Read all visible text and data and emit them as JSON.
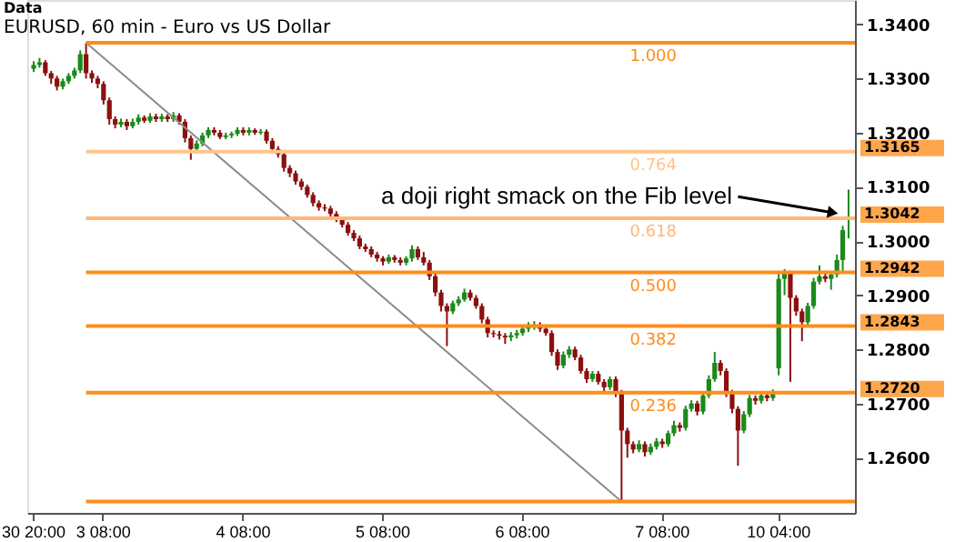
{
  "chart_data": {
    "type": "candlestick",
    "title": "EURUSD, 60 min - Euro vs US Dollar",
    "categories": [
      "30 20:00",
      null,
      null,
      null,
      null,
      null,
      null,
      null,
      null,
      null,
      null,
      null,
      "3 08:00",
      null,
      null,
      null,
      null,
      null,
      null,
      null,
      null,
      null,
      null,
      null,
      null,
      null,
      null,
      null,
      null,
      null,
      null,
      null,
      null,
      null,
      null,
      null,
      "4 08:00",
      null,
      null,
      null,
      null,
      null,
      null,
      null,
      null,
      null,
      null,
      null,
      null,
      null,
      null,
      null,
      null,
      null,
      null,
      null,
      null,
      null,
      null,
      null,
      "5 08:00",
      null,
      null,
      null,
      null,
      null,
      null,
      null,
      null,
      null,
      null,
      null,
      null,
      null,
      null,
      null,
      null,
      null,
      null,
      null,
      null,
      null,
      null,
      null,
      "6 08:00",
      null,
      null,
      null,
      null,
      null,
      null,
      null,
      null,
      null,
      null,
      null,
      null,
      null,
      null,
      null,
      null,
      null,
      null,
      null,
      null,
      null,
      null,
      null,
      "7 08:00",
      null,
      null,
      null,
      null,
      null,
      null,
      null,
      null,
      null,
      null,
      null,
      null,
      null,
      null,
      null,
      null,
      null,
      null,
      null,
      "10 04:00",
      null,
      null,
      null,
      null,
      null,
      null,
      null,
      null,
      null,
      null,
      null,
      null
    ],
    "ylim": [
      1.2498,
      1.3445
    ],
    "yticks": [
      {
        "value": 1.26,
        "label": "1.2600"
      },
      {
        "value": 1.27,
        "label": "1.2700"
      },
      {
        "value": 1.28,
        "label": "1.2800"
      },
      {
        "value": 1.29,
        "label": "1.2900"
      },
      {
        "value": 1.3,
        "label": "1.3000"
      },
      {
        "value": 1.31,
        "label": "1.3100"
      },
      {
        "value": 1.32,
        "label": "1.3200"
      },
      {
        "value": 1.33,
        "label": "1.3300"
      },
      {
        "value": 1.34,
        "label": "1.3400"
      }
    ],
    "ohlc": [
      [
        1.3318,
        1.3332,
        1.3312,
        1.3325
      ],
      [
        1.3325,
        1.3338,
        1.332,
        1.333
      ],
      [
        1.333,
        1.3334,
        1.3305,
        1.331
      ],
      [
        1.331,
        1.3314,
        1.329,
        1.33
      ],
      [
        1.33,
        1.3305,
        1.3278,
        1.3285
      ],
      [
        1.3285,
        1.33,
        1.328,
        1.3295
      ],
      [
        1.3295,
        1.331,
        1.329,
        1.3305
      ],
      [
        1.3305,
        1.332,
        1.33,
        1.3315
      ],
      [
        1.3315,
        1.3352,
        1.331,
        1.3345
      ],
      [
        1.3345,
        1.3366,
        1.33,
        1.331
      ],
      [
        1.331,
        1.3315,
        1.3292,
        1.33
      ],
      [
        1.33,
        1.3305,
        1.3282,
        1.329
      ],
      [
        1.329,
        1.3295,
        1.3252,
        1.326
      ],
      [
        1.326,
        1.3265,
        1.3215,
        1.3225
      ],
      [
        1.3225,
        1.323,
        1.3208,
        1.3215
      ],
      [
        1.3215,
        1.3226,
        1.321,
        1.322
      ],
      [
        1.322,
        1.3225,
        1.3205,
        1.3212
      ],
      [
        1.3212,
        1.3226,
        1.3208,
        1.322
      ],
      [
        1.322,
        1.3234,
        1.3215,
        1.3228
      ],
      [
        1.3228,
        1.3232,
        1.3218,
        1.3222
      ],
      [
        1.3222,
        1.3236,
        1.3218,
        1.323
      ],
      [
        1.323,
        1.3235,
        1.322,
        1.3225
      ],
      [
        1.3225,
        1.3235,
        1.322,
        1.323
      ],
      [
        1.323,
        1.3234,
        1.322,
        1.3225
      ],
      [
        1.3225,
        1.3238,
        1.322,
        1.3232
      ],
      [
        1.3232,
        1.3236,
        1.3215,
        1.322
      ],
      [
        1.322,
        1.3225,
        1.3182,
        1.319
      ],
      [
        1.319,
        1.3195,
        1.315,
        1.317
      ],
      [
        1.317,
        1.3186,
        1.3162,
        1.318
      ],
      [
        1.318,
        1.32,
        1.3175,
        1.3195
      ],
      [
        1.3195,
        1.321,
        1.319,
        1.3205
      ],
      [
        1.3205,
        1.321,
        1.3195,
        1.32
      ],
      [
        1.32,
        1.3205,
        1.3188,
        1.3192
      ],
      [
        1.3192,
        1.32,
        1.3188,
        1.3195
      ],
      [
        1.3195,
        1.3202,
        1.319,
        1.3198
      ],
      [
        1.3198,
        1.321,
        1.3194,
        1.3205
      ],
      [
        1.3205,
        1.321,
        1.3195,
        1.32
      ],
      [
        1.32,
        1.321,
        1.3195,
        1.3205
      ],
      [
        1.3205,
        1.3208,
        1.3196,
        1.32
      ],
      [
        1.32,
        1.3207,
        1.3196,
        1.3202
      ],
      [
        1.3202,
        1.3206,
        1.318,
        1.3185
      ],
      [
        1.3185,
        1.319,
        1.3165,
        1.317
      ],
      [
        1.317,
        1.3175,
        1.3154,
        1.316
      ],
      [
        1.316,
        1.3164,
        1.3128,
        1.3135
      ],
      [
        1.3135,
        1.314,
        1.3118,
        1.3125
      ],
      [
        1.3125,
        1.313,
        1.3104,
        1.311
      ],
      [
        1.311,
        1.3115,
        1.3094,
        1.31
      ],
      [
        1.31,
        1.3104,
        1.308,
        1.3085
      ],
      [
        1.3085,
        1.309,
        1.3064,
        1.307
      ],
      [
        1.307,
        1.3075,
        1.3056,
        1.3062
      ],
      [
        1.3062,
        1.3068,
        1.3055,
        1.306
      ],
      [
        1.306,
        1.3065,
        1.3045,
        1.305
      ],
      [
        1.305,
        1.3055,
        1.3035,
        1.304
      ],
      [
        1.304,
        1.3045,
        1.3025,
        1.303
      ],
      [
        1.303,
        1.3035,
        1.301,
        1.3015
      ],
      [
        1.3015,
        1.302,
        1.3,
        1.3005
      ],
      [
        1.3005,
        1.301,
        1.2985,
        1.299
      ],
      [
        1.299,
        1.2995,
        1.298,
        1.2985
      ],
      [
        1.2985,
        1.299,
        1.297,
        1.2975
      ],
      [
        1.2975,
        1.298,
        1.2962,
        1.2968
      ],
      [
        1.2968,
        1.2972,
        1.2955,
        1.2962
      ],
      [
        1.2962,
        1.2975,
        1.2958,
        1.297
      ],
      [
        1.297,
        1.2974,
        1.296,
        1.2965
      ],
      [
        1.2965,
        1.297,
        1.2955,
        1.296
      ],
      [
        1.296,
        1.2972,
        1.2955,
        1.2968
      ],
      [
        1.2968,
        1.2992,
        1.2962,
        1.2985
      ],
      [
        1.2985,
        1.299,
        1.2965,
        1.297
      ],
      [
        1.297,
        1.298,
        1.2955,
        1.296
      ],
      [
        1.296,
        1.2965,
        1.2928,
        1.2935
      ],
      [
        1.2935,
        1.294,
        1.2898,
        1.2905
      ],
      [
        1.2905,
        1.291,
        1.287,
        1.288
      ],
      [
        1.288,
        1.2885,
        1.2806,
        1.287
      ],
      [
        1.287,
        1.289,
        1.2865,
        1.2885
      ],
      [
        1.2885,
        1.2898,
        1.288,
        1.2892
      ],
      [
        1.2892,
        1.2912,
        1.2888,
        1.2905
      ],
      [
        1.2905,
        1.291,
        1.289,
        1.2895
      ],
      [
        1.2895,
        1.29,
        1.2875,
        1.288
      ],
      [
        1.288,
        1.2885,
        1.2848,
        1.2855
      ],
      [
        1.2855,
        1.286,
        1.2822,
        1.283
      ],
      [
        1.283,
        1.2835,
        1.2822,
        1.2828
      ],
      [
        1.2828,
        1.2834,
        1.2818,
        1.2825
      ],
      [
        1.2825,
        1.283,
        1.281,
        1.2822
      ],
      [
        1.2822,
        1.2832,
        1.2815,
        1.2826
      ],
      [
        1.2826,
        1.2836,
        1.282,
        1.283
      ],
      [
        1.283,
        1.2845,
        1.2825,
        1.2838
      ],
      [
        1.2838,
        1.285,
        1.2832,
        1.2842
      ],
      [
        1.2842,
        1.2852,
        1.2836,
        1.2845
      ],
      [
        1.2845,
        1.285,
        1.2832,
        1.2838
      ],
      [
        1.2838,
        1.2842,
        1.2825,
        1.283
      ],
      [
        1.283,
        1.2835,
        1.2788,
        1.2795
      ],
      [
        1.2795,
        1.28,
        1.2762,
        1.277
      ],
      [
        1.277,
        1.2796,
        1.2765,
        1.279
      ],
      [
        1.279,
        1.2806,
        1.2784,
        1.28
      ],
      [
        1.28,
        1.2805,
        1.278,
        1.2785
      ],
      [
        1.2785,
        1.279,
        1.2755,
        1.276
      ],
      [
        1.276,
        1.2765,
        1.2738,
        1.2745
      ],
      [
        1.2745,
        1.276,
        1.274,
        1.2755
      ],
      [
        1.2755,
        1.276,
        1.2735,
        1.274
      ],
      [
        1.274,
        1.2745,
        1.2722,
        1.273
      ],
      [
        1.273,
        1.275,
        1.2725,
        1.2745
      ],
      [
        1.2745,
        1.275,
        1.2712,
        1.272
      ],
      [
        1.272,
        1.2725,
        1.2519,
        1.265
      ],
      [
        1.265,
        1.2655,
        1.26,
        1.2625
      ],
      [
        1.2625,
        1.263,
        1.2608,
        1.2615
      ],
      [
        1.2615,
        1.2632,
        1.261,
        1.2625
      ],
      [
        1.2625,
        1.263,
        1.2602,
        1.261
      ],
      [
        1.261,
        1.2626,
        1.2605,
        1.262
      ],
      [
        1.262,
        1.2636,
        1.2615,
        1.263
      ],
      [
        1.263,
        1.2635,
        1.2618,
        1.2625
      ],
      [
        1.2625,
        1.265,
        1.262,
        1.2645
      ],
      [
        1.2645,
        1.2668,
        1.264,
        1.266
      ],
      [
        1.266,
        1.2665,
        1.2648,
        1.2655
      ],
      [
        1.2655,
        1.2696,
        1.265,
        1.269
      ],
      [
        1.269,
        1.2706,
        1.2685,
        1.27
      ],
      [
        1.27,
        1.2705,
        1.2678,
        1.2685
      ],
      [
        1.2685,
        1.2722,
        1.268,
        1.2715
      ],
      [
        1.2715,
        1.2752,
        1.271,
        1.2745
      ],
      [
        1.2745,
        1.2795,
        1.274,
        1.2775
      ],
      [
        1.2775,
        1.278,
        1.2752,
        1.276
      ],
      [
        1.276,
        1.2765,
        1.2712,
        1.272
      ],
      [
        1.272,
        1.2725,
        1.2682,
        1.269
      ],
      [
        1.269,
        1.2695,
        1.2585,
        1.265
      ],
      [
        1.265,
        1.2686,
        1.2645,
        1.268
      ],
      [
        1.268,
        1.2716,
        1.2675,
        1.271
      ],
      [
        1.271,
        1.2715,
        1.2698,
        1.2705
      ],
      [
        1.2705,
        1.2722,
        1.27,
        1.2715
      ],
      [
        1.2715,
        1.272,
        1.2704,
        1.271
      ],
      [
        1.271,
        1.2726,
        1.2705,
        1.272
      ],
      [
        1.2765,
        1.2945,
        1.2752,
        1.293
      ],
      [
        1.293,
        1.2948,
        1.29,
        1.294
      ],
      [
        1.294,
        1.2945,
        1.274,
        1.2895
      ],
      [
        1.2895,
        1.29,
        1.2862,
        1.287
      ],
      [
        1.287,
        1.2875,
        1.2815,
        1.285
      ],
      [
        1.285,
        1.2886,
        1.2845,
        1.288
      ],
      [
        1.288,
        1.2932,
        1.2875,
        1.2925
      ],
      [
        1.2925,
        1.2955,
        1.292,
        1.2935
      ],
      [
        1.2935,
        1.2945,
        1.2924,
        1.293
      ],
      [
        1.293,
        1.2944,
        1.291,
        1.2938
      ],
      [
        1.2938,
        1.2975,
        1.2933,
        1.2965
      ],
      [
        1.2965,
        1.3028,
        1.294,
        1.302
      ],
      [
        1.304,
        1.3095,
        1.3005,
        1.3042
      ]
    ],
    "colors": [
      "#1a8a1a",
      "#1a8a1a",
      "#8b1010",
      "#8b1010",
      "#8b1010",
      "#1a8a1a",
      "#1a8a1a",
      "#1a8a1a",
      "#1a8a1a",
      "#8b1010",
      "#8b1010",
      "#8b1010",
      "#8b1010",
      "#8b1010",
      "#8b1010",
      "#1a8a1a",
      "#8b1010",
      "#1a8a1a",
      "#1a8a1a",
      "#8b1010",
      "#1a8a1a",
      "#8b1010",
      "#1a8a1a",
      "#8b1010",
      "#1a8a1a",
      "#8b1010",
      "#8b1010",
      "#8b1010",
      "#1a8a1a",
      "#1a8a1a",
      "#1a8a1a",
      "#8b1010",
      "#8b1010",
      "#1a8a1a",
      "#1a8a1a",
      "#1a8a1a",
      "#8b1010",
      "#1a8a1a",
      "#8b1010",
      "#1a8a1a",
      "#8b1010",
      "#8b1010",
      "#8b1010",
      "#8b1010",
      "#8b1010",
      "#8b1010",
      "#8b1010",
      "#8b1010",
      "#8b1010",
      "#8b1010",
      "#8b1010",
      "#8b1010",
      "#8b1010",
      "#8b1010",
      "#8b1010",
      "#8b1010",
      "#8b1010",
      "#8b1010",
      "#8b1010",
      "#8b1010",
      "#8b1010",
      "#1a8a1a",
      "#8b1010",
      "#8b1010",
      "#1a8a1a",
      "#1a8a1a",
      "#8b1010",
      "#8b1010",
      "#8b1010",
      "#8b1010",
      "#8b1010",
      "#8b1010",
      "#1a8a1a",
      "#1a8a1a",
      "#1a8a1a",
      "#8b1010",
      "#8b1010",
      "#8b1010",
      "#8b1010",
      "#8b1010",
      "#8b1010",
      "#8b1010",
      "#1a8a1a",
      "#1a8a1a",
      "#1a8a1a",
      "#1a8a1a",
      "#1a8a1a",
      "#8b1010",
      "#8b1010",
      "#8b1010",
      "#8b1010",
      "#1a8a1a",
      "#1a8a1a",
      "#8b1010",
      "#8b1010",
      "#8b1010",
      "#1a8a1a",
      "#8b1010",
      "#8b1010",
      "#1a8a1a",
      "#8b1010",
      "#8b1010",
      "#8b1010",
      "#8b1010",
      "#1a8a1a",
      "#8b1010",
      "#1a8a1a",
      "#1a8a1a",
      "#8b1010",
      "#1a8a1a",
      "#1a8a1a",
      "#8b1010",
      "#1a8a1a",
      "#1a8a1a",
      "#8b1010",
      "#1a8a1a",
      "#1a8a1a",
      "#1a8a1a",
      "#8b1010",
      "#8b1010",
      "#8b1010",
      "#8b1010",
      "#1a8a1a",
      "#1a8a1a",
      "#8b1010",
      "#1a8a1a",
      "#8b1010",
      "#1a8a1a",
      "#1a8a1a",
      "#1a8a1a",
      "#8b1010",
      "#8b1010",
      "#8b1010",
      "#1a8a1a",
      "#1a8a1a",
      "#1a8a1a",
      "#8b1010",
      "#1a8a1a",
      "#1a8a1a",
      "#1a8a1a",
      "#1a8a1a"
    ],
    "series": [
      {
        "type": "line",
        "color": "#8c8c8c",
        "values": [
          null,
          null,
          null,
          null,
          null,
          null,
          null,
          null,
          null,
          1.3366,
          null,
          null,
          null,
          null,
          null,
          null,
          null,
          null,
          null,
          null,
          null,
          null,
          null,
          null,
          null,
          null,
          null,
          null,
          null,
          null,
          null,
          null,
          null,
          null,
          null,
          null,
          null,
          null,
          null,
          null,
          null,
          null,
          null,
          null,
          null,
          null,
          null,
          null,
          null,
          null,
          null,
          null,
          null,
          null,
          null,
          null,
          null,
          null,
          null,
          null,
          null,
          null,
          null,
          null,
          null,
          null,
          null,
          null,
          null,
          null,
          null,
          null,
          null,
          null,
          null,
          null,
          null,
          null,
          null,
          null,
          null,
          null,
          null,
          null,
          null,
          null,
          null,
          null,
          null,
          null,
          null,
          null,
          null,
          null,
          null,
          null,
          null,
          null,
          null,
          null,
          null,
          1.2519,
          null,
          null,
          null,
          null,
          null,
          null,
          null,
          null,
          null,
          null,
          null,
          null,
          null,
          null,
          null,
          null,
          null,
          null,
          null,
          null,
          null,
          null,
          null,
          null,
          null,
          null,
          null,
          null,
          null,
          null,
          null,
          null,
          null,
          null,
          null,
          null,
          null,
          null,
          null
        ]
      }
    ],
    "ref_lines": [
      {
        "axis": "y",
        "value": 1.3366,
        "label": null,
        "color": "#ff8c1a"
      },
      {
        "axis": "y",
        "value": 1.3165,
        "label": "1.3165",
        "color": "#ffc48a"
      },
      {
        "axis": "y",
        "value": 1.3042,
        "label": "1.3042",
        "color": "#ffb877"
      },
      {
        "axis": "y",
        "value": 1.2942,
        "label": "1.2942",
        "color": "#ff8c1a"
      },
      {
        "axis": "y",
        "value": 1.2843,
        "label": "1.2843",
        "color": "#ff8c1a"
      },
      {
        "axis": "y",
        "value": 1.272,
        "label": "1.2720",
        "color": "#ff8c1a"
      },
      {
        "axis": "y",
        "value": 1.2519,
        "label": null,
        "color": "#ff8c1a"
      }
    ],
    "annotations": [
      "Data",
      {
        "text": "a doji right smack on the Fib level",
        "y": 1.3042
      },
      {
        "text": "1.000",
        "y": 1.3366
      },
      {
        "text": "0.764",
        "y": 1.3165
      },
      {
        "text": "0.618",
        "y": 1.3042
      },
      {
        "text": "0.500",
        "y": 1.2942
      },
      {
        "text": "0.382",
        "y": 1.2843
      },
      {
        "text": "0.236",
        "y": 1.272
      }
    ]
  }
}
